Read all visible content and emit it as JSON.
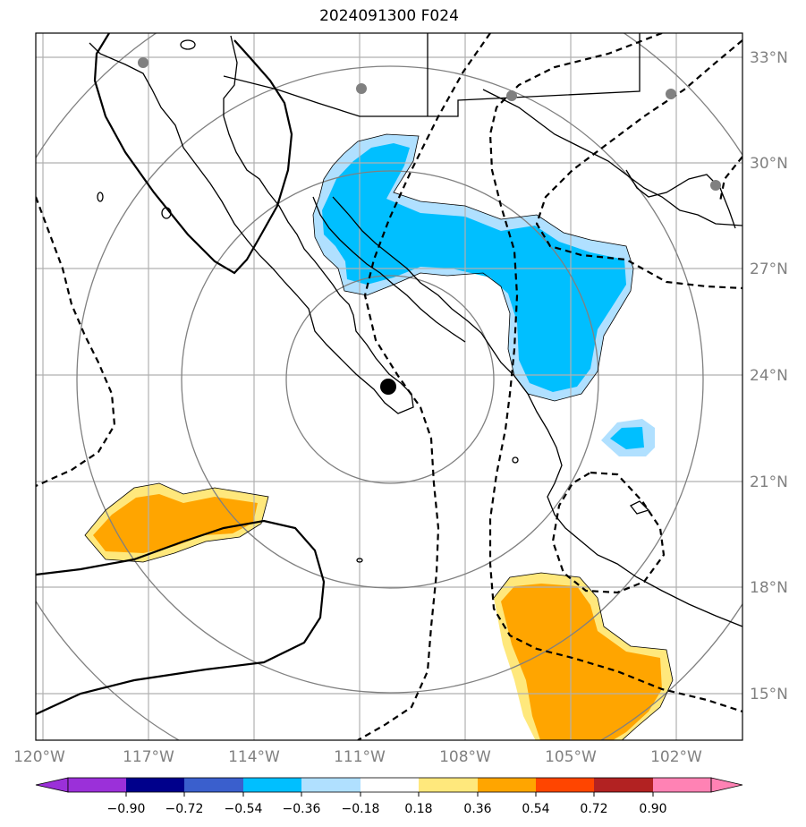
{
  "title": "2024091300 F024",
  "map": {
    "lat_labels": [
      "33°N",
      "30°N",
      "27°N",
      "24°N",
      "21°N",
      "18°N",
      "15°N"
    ],
    "lon_labels": [
      "120°W",
      "117°W",
      "114°W",
      "111°W",
      "108°W",
      "105°W",
      "102°W"
    ],
    "center_marker": {
      "lon": -110.2,
      "lat": 23.6
    },
    "range_rings": 4
  },
  "colorbar": {
    "ticks": [
      "−0.90",
      "−0.72",
      "−0.54",
      "−0.36",
      "−0.18",
      "0.18",
      "0.36",
      "0.54",
      "0.72",
      "0.90"
    ],
    "colors": [
      "#9b30d9",
      "#00008b",
      "#3a5fcd",
      "#00bfff",
      "#b0e0ff",
      "#ffffff",
      "#ffe87c",
      "#ffa500",
      "#ff4500",
      "#b22222",
      "#ff82b4"
    ]
  },
  "colors": {
    "positive_light": "#ffe87c",
    "positive": "#ffa500",
    "negative_light": "#b0e0ff",
    "negative": "#00bfff",
    "grid": "#b0b0b0",
    "rings": "#808080"
  }
}
